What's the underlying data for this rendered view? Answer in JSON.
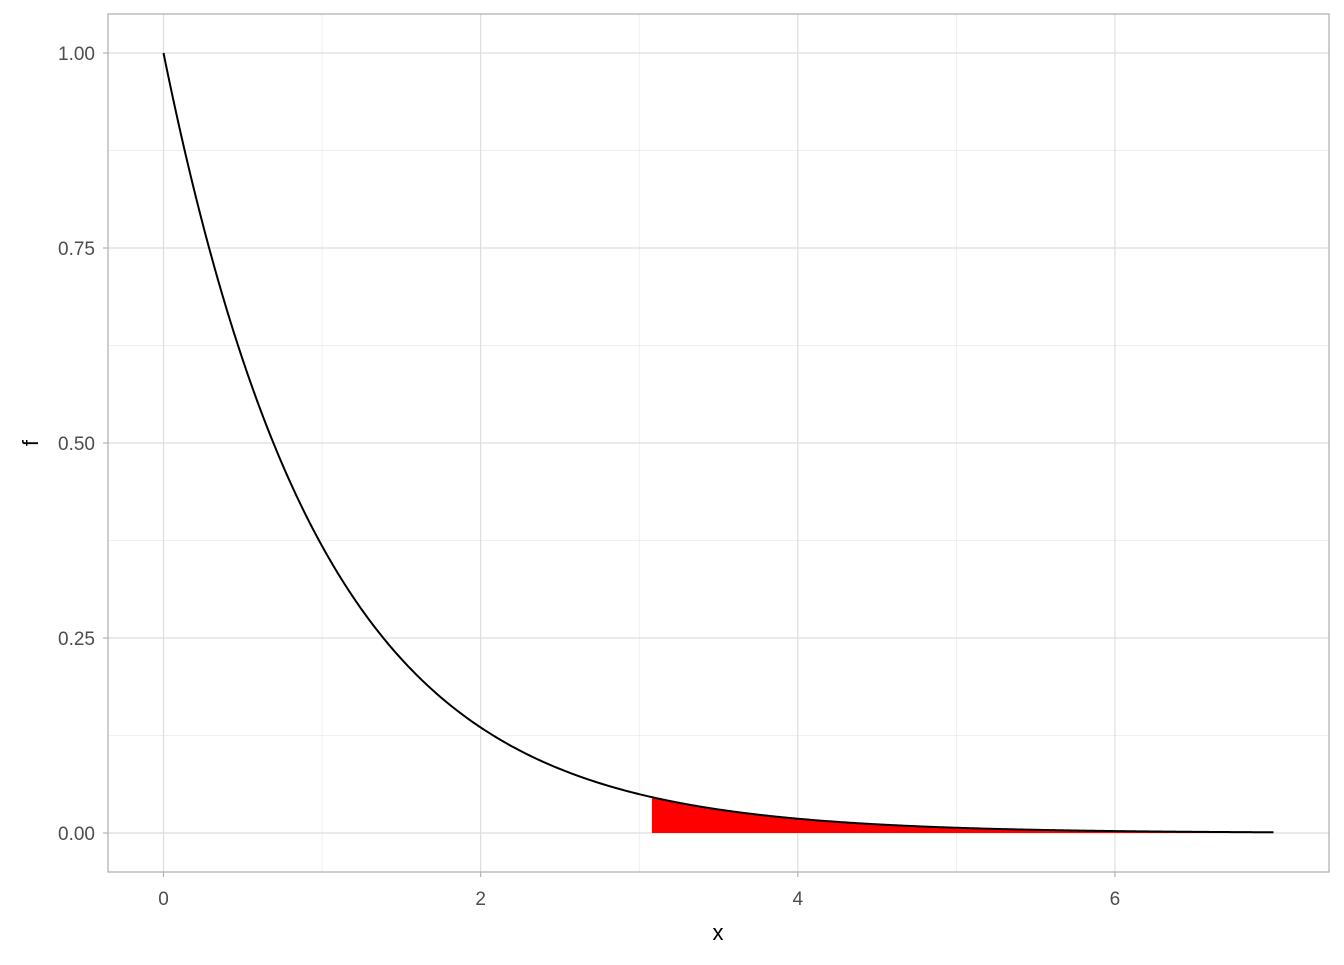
{
  "chart_data": {
    "type": "area",
    "title": "",
    "xlabel": "x",
    "ylabel": "f",
    "xlim": [
      -0.35,
      7.35
    ],
    "ylim": [
      -0.05,
      1.05
    ],
    "x_ticks": [
      0,
      2,
      4,
      6
    ],
    "x_tick_labels": [
      "0",
      "2",
      "4",
      "6"
    ],
    "y_ticks": [
      0,
      0.25,
      0.5,
      0.75,
      1
    ],
    "y_tick_labels": [
      "0.00",
      "0.25",
      "0.50",
      "0.75",
      "1.00"
    ],
    "grid": true,
    "curve": {
      "function": "exp(-x)",
      "x_range": [
        0,
        7
      ],
      "color": "#000000"
    },
    "shaded_region": {
      "x_range": [
        3.08,
        7
      ],
      "color": "#FF0000"
    }
  }
}
